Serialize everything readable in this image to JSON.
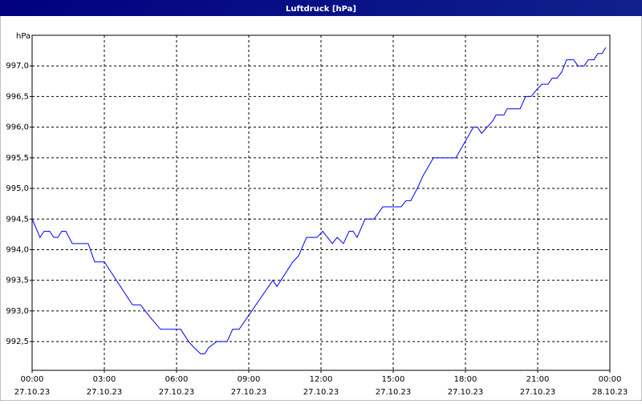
{
  "chart_data": {
    "type": "line",
    "title": "Luftdruck [hPa]",
    "y_label": "hPa",
    "x": [
      0,
      0.33,
      0.5,
      0.73,
      0.9,
      1.07,
      1.23,
      1.4,
      1.67,
      2.33,
      2.6,
      3,
      4.17,
      4.5,
      4.9,
      5.33,
      6.17,
      6.5,
      6.73,
      7,
      7.17,
      7.33,
      7.67,
      8.1,
      8.33,
      8.6,
      10,
      10.17,
      10.83,
      11.07,
      11.4,
      11.83,
      12.07,
      12.27,
      12.47,
      12.67,
      12.93,
      13.17,
      13.33,
      13.5,
      13.83,
      14.2,
      14.57,
      15.33,
      15.53,
      15.73,
      16,
      16.23,
      16.67,
      17.6,
      18.33,
      18.5,
      18.67,
      19.13,
      19.27,
      19.6,
      19.73,
      20.27,
      20.5,
      20.73,
      20.93,
      21.17,
      21.43,
      21.6,
      21.8,
      22,
      22.2,
      22.5,
      22.67,
      22.93,
      23.1,
      23.33,
      23.5,
      23.67,
      23.83
    ],
    "series": [
      {
        "color": "#0000ff",
        "values": [
          994.5,
          994.2,
          994.3,
          994.3,
          994.2,
          994.2,
          994.3,
          994.3,
          994.1,
          994.1,
          993.8,
          993.8,
          993.1,
          993.1,
          992.9,
          992.7,
          992.7,
          992.5,
          992.4,
          992.3,
          992.3,
          992.4,
          992.5,
          992.5,
          992.7,
          992.7,
          993.5,
          993.4,
          993.8,
          993.9,
          994.2,
          994.2,
          994.3,
          994.2,
          994.1,
          994.2,
          994.1,
          994.3,
          994.3,
          994.2,
          994.5,
          994.5,
          994.7,
          994.7,
          994.8,
          994.8,
          995.0,
          995.2,
          995.5,
          995.5,
          996.0,
          996.0,
          995.9,
          996.1,
          996.2,
          996.2,
          996.3,
          996.3,
          996.5,
          996.5,
          996.6,
          996.7,
          996.7,
          996.8,
          996.8,
          996.9,
          997.1,
          997.1,
          997.0,
          997.0,
          997.1,
          997.1,
          997.2,
          997.2,
          997.3
        ]
      }
    ],
    "xlim": [
      0,
      24
    ],
    "xticks": [
      {
        "value": 0,
        "label": "00:00"
      },
      {
        "value": 3,
        "label": "03:00"
      },
      {
        "value": 6,
        "label": "06:00"
      },
      {
        "value": 9,
        "label": "09:00"
      },
      {
        "value": 12,
        "label": "12:00"
      },
      {
        "value": 15,
        "label": "15:00"
      },
      {
        "value": 18,
        "label": "18:00"
      },
      {
        "value": 21,
        "label": "21:00"
      },
      {
        "value": 24,
        "label": "00:00"
      }
    ],
    "xtick_dates": [
      "27.10.23",
      "27.10.23",
      "27.10.23",
      "27.10.23",
      "27.10.23",
      "27.10.23",
      "27.10.23",
      "27.10.23",
      "28.10.23"
    ],
    "ylim": [
      992.03,
      997.5
    ],
    "yticks": [
      {
        "value": 992.5,
        "label": "992,5"
      },
      {
        "value": 993,
        "label": "993,0"
      },
      {
        "value": 993.5,
        "label": "993,5"
      },
      {
        "value": 994,
        "label": "994,0"
      },
      {
        "value": 994.5,
        "label": "994,5"
      },
      {
        "value": 995,
        "label": "995,0"
      },
      {
        "value": 995.5,
        "label": "995,5"
      },
      {
        "value": 996,
        "label": "996,0"
      },
      {
        "value": 996.5,
        "label": "996,5"
      },
      {
        "value": 997,
        "label": "997,0"
      }
    ],
    "grid": true
  }
}
